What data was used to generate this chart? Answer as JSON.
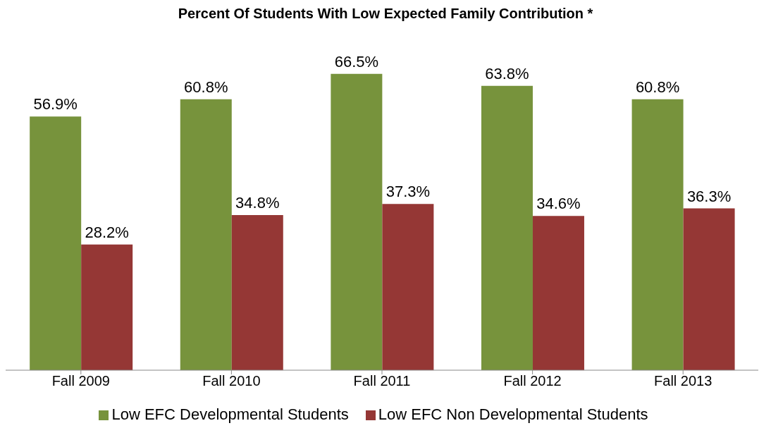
{
  "chart_data": {
    "type": "bar",
    "title": "Percent Of Students With Low Expected Family Contribution *",
    "categories": [
      "Fall 2009",
      "Fall 2010",
      "Fall 2011",
      "Fall 2012",
      "Fall 2013"
    ],
    "series": [
      {
        "name": "Low EFC Developmental Students",
        "color": "#77933c",
        "values": [
          56.9,
          60.8,
          66.5,
          63.8,
          60.8
        ],
        "value_labels": [
          "56.9%",
          "60.8%",
          "66.5%",
          "63.8%",
          "60.8%"
        ]
      },
      {
        "name": "Low EFC Non Developmental Students",
        "color": "#953735",
        "values": [
          28.2,
          34.8,
          37.3,
          34.6,
          36.3
        ],
        "value_labels": [
          "28.2%",
          "34.8%",
          "37.3%",
          "34.6%",
          "36.3%"
        ]
      }
    ],
    "legend": "bottom",
    "grid": false
  }
}
